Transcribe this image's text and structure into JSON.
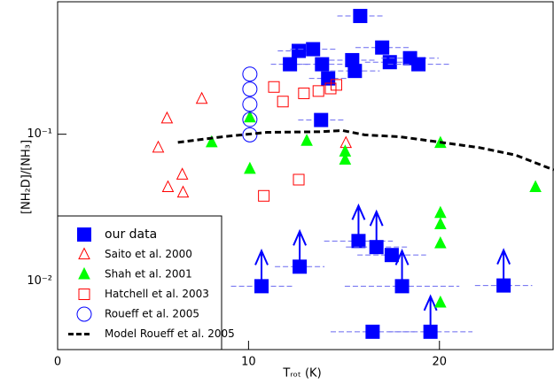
{
  "chart_data": {
    "type": "scatter",
    "xlabel": "Tᵣₒₜ (K)",
    "ylabel": "[NH₂D]/[NH₃]",
    "xlim": [
      0,
      26
    ],
    "ylim": [
      0.0034,
      0.8
    ],
    "log_y": true,
    "xticks": [
      0,
      10,
      20
    ],
    "yticks": [
      {
        "value": 0.1,
        "label": "10⁻¹"
      },
      {
        "value": 0.01,
        "label": "10⁻²"
      }
    ],
    "legend": "lower left",
    "series": [
      {
        "name": "our data",
        "color": "#0000ff",
        "marker": "square-filled",
        "x": [
          15.85,
          12.17,
          12.63,
          13.38,
          13.85,
          14.17,
          15.43,
          15.57,
          17.0,
          17.4,
          18.46,
          18.9,
          13.8,
          10.68,
          12.68,
          15.76,
          16.7,
          17.5,
          18.04,
          16.5,
          19.53,
          23.36
        ],
        "values": [
          0.64,
          0.3,
          0.37,
          0.38,
          0.3,
          0.24,
          0.32,
          0.27,
          0.39,
          0.31,
          0.33,
          0.3,
          0.125,
          0.0092,
          0.0125,
          0.0187,
          0.017,
          0.015,
          0.0092,
          0.0045,
          0.0045,
          0.0093
        ],
        "xerr": [
          1.2,
          1.0,
          1.1,
          1.2,
          1.3,
          1.0,
          1.2,
          1.3,
          1.4,
          1.3,
          1.5,
          1.6,
          1.2,
          1.6,
          1.3,
          1.8,
          1.6,
          1.8,
          3.0,
          2.2,
          2.2,
          1.5
        ],
        "lower_limits": [
          false,
          false,
          false,
          false,
          false,
          false,
          false,
          false,
          false,
          false,
          false,
          false,
          false,
          true,
          true,
          true,
          true,
          false,
          true,
          false,
          true,
          true
        ]
      },
      {
        "name": "Saito et al. 2000",
        "color": "#ff0000",
        "marker": "triangle-open",
        "x": [
          7.55,
          5.73,
          5.27,
          6.53,
          5.78,
          6.57,
          15.1
        ],
        "values": [
          0.174,
          0.128,
          0.081,
          0.053,
          0.0435,
          0.04,
          0.087
        ]
      },
      {
        "name": "Shah et al. 2001",
        "color": "#00ff00",
        "marker": "triangle-filled",
        "x": [
          8.07,
          10.07,
          10.07,
          13.05,
          15.06,
          15.06,
          20.05,
          20.05,
          20.05,
          20.05,
          20.05,
          25.03
        ],
        "values": [
          0.088,
          0.13,
          0.058,
          0.09,
          0.076,
          0.067,
          0.087,
          0.029,
          0.0243,
          0.018,
          0.0071,
          0.0435
        ]
      },
      {
        "name": "Hatchell et al. 2003",
        "color": "#ff0000",
        "marker": "square-open",
        "x": [
          11.33,
          11.8,
          12.9,
          13.66,
          14.3,
          14.6,
          10.8,
          12.63
        ],
        "values": [
          0.21,
          0.167,
          0.19,
          0.197,
          0.205,
          0.217,
          0.038,
          0.049
        ]
      },
      {
        "name": "Roueff et al. 2005",
        "color": "#0000ff",
        "marker": "circle-open",
        "x": [
          10.07,
          10.07,
          10.07,
          10.07,
          10.07
        ],
        "values": [
          0.257,
          0.203,
          0.16,
          0.126,
          0.099
        ]
      },
      {
        "name": "Model Roueff et al. 2005",
        "color": "#000000",
        "marker": "dashed-line",
        "x": [
          6.3,
          8.62,
          10.96,
          13.75,
          14.92,
          16.08,
          17.95,
          19.81,
          22.1,
          24.0,
          26
        ],
        "values": [
          0.088,
          0.096,
          0.103,
          0.104,
          0.106,
          0.099,
          0.096,
          0.089,
          0.081,
          0.072,
          0.057
        ]
      }
    ]
  }
}
